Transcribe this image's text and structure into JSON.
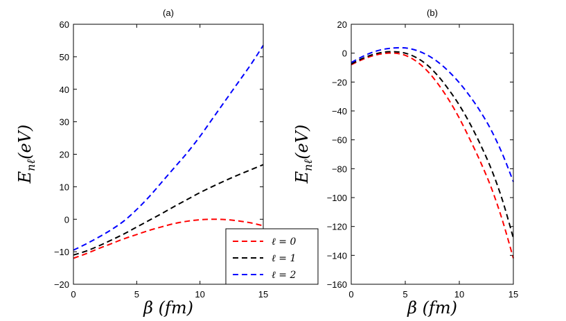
{
  "chart_data": [
    {
      "type": "line",
      "title": "(a)",
      "xlabel": "β (fm)",
      "ylabel": "E_nℓ(eV)",
      "xlim": [
        0,
        15
      ],
      "ylim": [
        -20,
        60
      ],
      "xticks": [
        0,
        5,
        10,
        15
      ],
      "yticks": [
        -20,
        -10,
        0,
        10,
        20,
        30,
        40,
        50,
        60
      ],
      "xtick_labels": [
        "0",
        "5",
        "10",
        "15"
      ],
      "ytick_labels": [
        "−20",
        "−10",
        "0",
        "10",
        "20",
        "30",
        "40",
        "50",
        "60"
      ],
      "series": [
        {
          "name": "ℓ = 0",
          "color": "#ff0000",
          "x": [
            0,
            1,
            2,
            3,
            4,
            5,
            6,
            7,
            8,
            9,
            10,
            11,
            12,
            13,
            14,
            15
          ],
          "y": [
            -12,
            -10.6,
            -9.0,
            -7.5,
            -6.0,
            -4.7,
            -3.4,
            -2.3,
            -1.3,
            -0.6,
            -0.15,
            0,
            -0.1,
            -0.5,
            -1.1,
            -2.0
          ]
        },
        {
          "name": "ℓ = 1",
          "color": "#000000",
          "x": [
            0,
            1,
            2,
            3,
            4,
            5,
            6,
            7,
            8,
            9,
            10,
            11,
            12,
            13,
            14,
            15
          ],
          "y": [
            -11,
            -9.8,
            -8.2,
            -6.4,
            -4.5,
            -2.4,
            -0.3,
            1.8,
            4.0,
            6.1,
            8.2,
            10.1,
            11.9,
            13.6,
            15.2,
            16.8
          ]
        },
        {
          "name": "ℓ = 2",
          "color": "#0000ff",
          "x": [
            0,
            1,
            2,
            3,
            4,
            5,
            6,
            7,
            8,
            9,
            10,
            11,
            12,
            13,
            14,
            15
          ],
          "y": [
            -9.5,
            -7.6,
            -5.5,
            -3.2,
            -0.5,
            3.0,
            7.0,
            11.5,
            16.0,
            20.5,
            25.5,
            31.0,
            36.5,
            42.0,
            47.5,
            53.5
          ]
        }
      ]
    },
    {
      "type": "line",
      "title": "(b)",
      "xlabel": "β (fm)",
      "ylabel": "E_nℓ(eV)",
      "xlim": [
        0,
        15
      ],
      "ylim": [
        -160,
        20
      ],
      "xticks": [
        0,
        5,
        10,
        15
      ],
      "yticks": [
        -160,
        -140,
        -120,
        -100,
        -80,
        -60,
        -40,
        -20,
        0,
        20
      ],
      "xtick_labels": [
        "0",
        "5",
        "10",
        "15"
      ],
      "ytick_labels": [
        "−160",
        "−140",
        "−120",
        "−100",
        "−80",
        "−60",
        "−40",
        "−20",
        "0",
        "20"
      ],
      "series": [
        {
          "name": "ℓ = 0",
          "color": "#ff0000",
          "x": [
            0,
            1,
            2,
            3,
            4,
            5,
            6,
            7,
            8,
            9,
            10,
            11,
            12,
            13,
            14,
            15
          ],
          "y": [
            -8,
            -4.5,
            -1.8,
            -0.3,
            0,
            -1.5,
            -5.5,
            -12,
            -21,
            -32,
            -45,
            -60,
            -76,
            -94,
            -116,
            -142
          ]
        },
        {
          "name": "ℓ = 1",
          "color": "#000000",
          "x": [
            0,
            1,
            2,
            3,
            4,
            5,
            6,
            7,
            8,
            9,
            10,
            11,
            12,
            13,
            14,
            15
          ],
          "y": [
            -7.5,
            -3.8,
            -1.0,
            0.7,
            1.0,
            0,
            -3,
            -8,
            -15.5,
            -25,
            -36,
            -49,
            -64,
            -81,
            -102,
            -128
          ]
        },
        {
          "name": "ℓ = 2",
          "color": "#0000ff",
          "x": [
            0,
            1,
            2,
            3,
            4,
            5,
            6,
            7,
            8,
            9,
            10,
            11,
            12,
            13,
            14,
            15
          ],
          "y": [
            -6.5,
            -2.5,
            0.7,
            2.7,
            3.6,
            3.6,
            2.0,
            -1.2,
            -6.0,
            -12.5,
            -20.5,
            -30,
            -41,
            -54,
            -70,
            -89
          ]
        }
      ]
    }
  ],
  "legend": {
    "entries": [
      {
        "label": "ℓ = 0",
        "color": "#ff0000"
      },
      {
        "label": "ℓ = 1",
        "color": "#000000"
      },
      {
        "label": "ℓ = 2",
        "color": "#0000ff"
      }
    ]
  }
}
